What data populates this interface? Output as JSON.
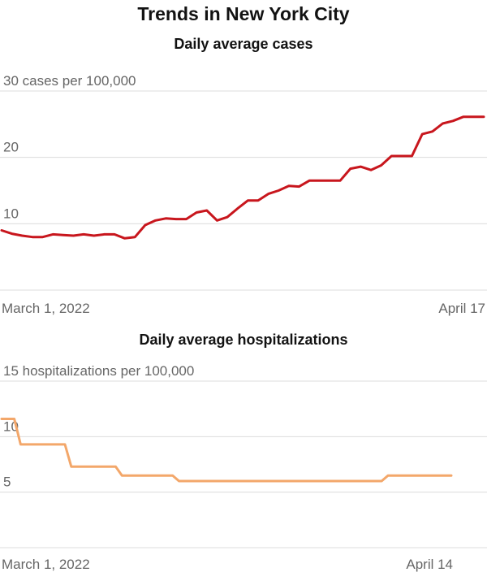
{
  "title": "Trends in New York City",
  "chart_data": [
    {
      "type": "line",
      "title": "Daily average cases",
      "xlabel": "",
      "ylabel": "",
      "top_tick_label": "30 cases per 100,000",
      "yticks": [
        10,
        20,
        30
      ],
      "ylim": [
        0,
        30
      ],
      "x_start_label": "March 1, 2022",
      "x_end_label": "April 17",
      "grid": true,
      "color": "#c8161d",
      "series": [
        {
          "values": [
            9.0,
            8.5,
            8.2,
            8.0,
            8.0,
            8.4,
            8.3,
            8.2,
            8.4,
            8.2,
            8.4,
            8.4,
            7.8,
            8.0,
            9.8,
            10.5,
            10.8,
            10.7,
            10.7,
            11.7,
            12.0,
            10.5,
            11.0,
            12.3,
            13.5,
            13.5,
            14.5,
            15.0,
            15.7,
            15.6,
            16.5,
            16.5,
            16.5,
            16.5,
            18.3,
            18.6,
            18.1,
            18.8,
            20.2,
            20.2,
            20.2,
            23.5,
            23.9,
            25.1,
            25.5,
            26.1,
            26.1,
            26.1
          ]
        }
      ]
    },
    {
      "type": "line",
      "title": "Daily average hospitalizations",
      "xlabel": "",
      "ylabel": "",
      "top_tick_label": "15 hospitalizations per 100,000",
      "yticks": [
        5,
        10,
        15
      ],
      "ylim": [
        0,
        15
      ],
      "x_start_label": "March 1, 2022",
      "x_end_label": "April 14",
      "grid": true,
      "color": "#f3a76a",
      "series": [
        {
          "values": [
            11.6,
            11.6,
            11.6,
            9.3,
            9.3,
            9.3,
            9.3,
            9.3,
            9.3,
            9.3,
            9.3,
            7.3,
            7.3,
            7.3,
            7.3,
            7.3,
            7.3,
            7.3,
            7.3,
            6.5,
            6.5,
            6.5,
            6.5,
            6.5,
            6.5,
            6.5,
            6.5,
            6.5,
            6.0,
            6.0,
            6.0,
            6.0,
            6.0,
            6.0,
            6.0,
            6.0,
            6.0,
            6.0,
            6.0,
            6.0,
            6.0,
            6.0,
            6.0,
            6.0,
            6.0,
            6.0,
            6.0,
            6.0,
            6.0,
            6.0,
            6.0,
            6.0,
            6.0,
            6.0,
            6.0,
            6.0,
            6.0,
            6.0,
            6.0,
            6.0,
            6.0,
            6.5,
            6.5,
            6.5,
            6.5,
            6.5,
            6.5,
            6.5,
            6.5,
            6.5,
            6.5,
            6.5
          ]
        }
      ]
    }
  ]
}
